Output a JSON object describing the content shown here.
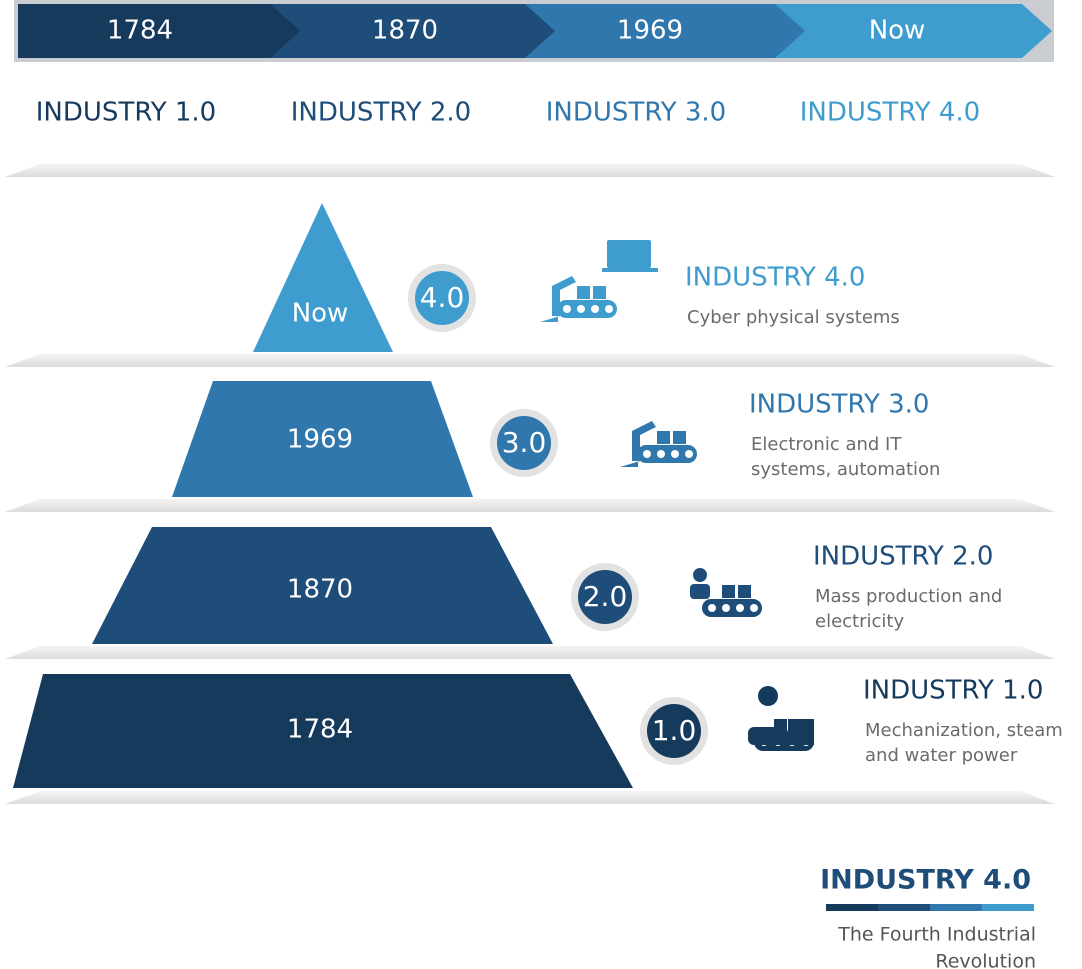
{
  "timeline": [
    {
      "year": "1784",
      "label": "INDUSTRY 1.0"
    },
    {
      "year": "1870",
      "label": "INDUSTRY 2.0"
    },
    {
      "year": "1969",
      "label": "INDUSTRY 3.0"
    },
    {
      "year": "Now",
      "label": "INDUSTRY 4.0"
    }
  ],
  "levels": [
    {
      "year": "Now",
      "badge": "4.0",
      "title": "INDUSTRY 4.0",
      "description": [
        "Cyber physical systems"
      ]
    },
    {
      "year": "1969",
      "badge": "3.0",
      "title": "INDUSTRY 3.0",
      "description": [
        "Electronic and IT",
        "systems, automation"
      ]
    },
    {
      "year": "1870",
      "badge": "2.0",
      "title": "INDUSTRY 2.0",
      "description": [
        "Mass production and",
        "electricity"
      ]
    },
    {
      "year": "1784",
      "badge": "1.0",
      "title": "INDUSTRY 1.0",
      "description": [
        "Mechanization, steam",
        "and water power"
      ]
    }
  ],
  "footer": {
    "title": "INDUSTRY 4.0",
    "subtitle": [
      "The Fourth Industrial",
      "Revolution"
    ]
  }
}
